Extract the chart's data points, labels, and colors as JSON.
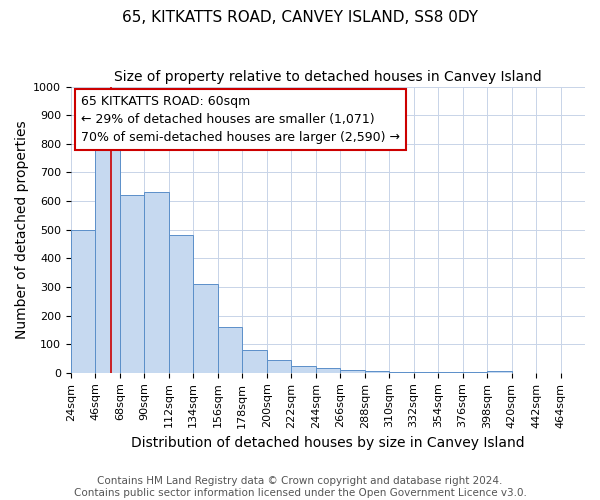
{
  "title": "65, KITKATTS ROAD, CANVEY ISLAND, SS8 0DY",
  "subtitle": "Size of property relative to detached houses in Canvey Island",
  "xlabel": "Distribution of detached houses by size in Canvey Island",
  "ylabel": "Number of detached properties",
  "footer_line1": "Contains HM Land Registry data © Crown copyright and database right 2024.",
  "footer_line2": "Contains public sector information licensed under the Open Government Licence v3.0.",
  "annotation_title": "65 KITKATTS ROAD: 60sqm",
  "annotation_line2": "← 29% of detached houses are smaller (1,071)",
  "annotation_line3": "70% of semi-detached houses are larger (2,590) →",
  "bar_edges": [
    24,
    46,
    68,
    90,
    112,
    134,
    156,
    178,
    200,
    222,
    244,
    266,
    288,
    310,
    332,
    354,
    376,
    398,
    420,
    442,
    464
  ],
  "bar_heights": [
    500,
    810,
    620,
    630,
    480,
    310,
    160,
    80,
    45,
    25,
    18,
    10,
    5,
    4,
    3,
    2,
    2,
    7,
    0,
    0,
    0
  ],
  "bar_color": "#c6d9f0",
  "bar_edge_color": "#5b8fc9",
  "property_line_x": 60,
  "ylim": [
    0,
    1000
  ],
  "background_color": "#ffffff",
  "grid_color": "#c8d4e8",
  "annotation_box_color": "#ffffff",
  "annotation_box_edge": "#cc0000",
  "title_fontsize": 11,
  "subtitle_fontsize": 10,
  "axis_label_fontsize": 10,
  "tick_fontsize": 8,
  "annotation_fontsize": 9,
  "footer_fontsize": 7.5,
  "red_line_color": "#cc0000"
}
